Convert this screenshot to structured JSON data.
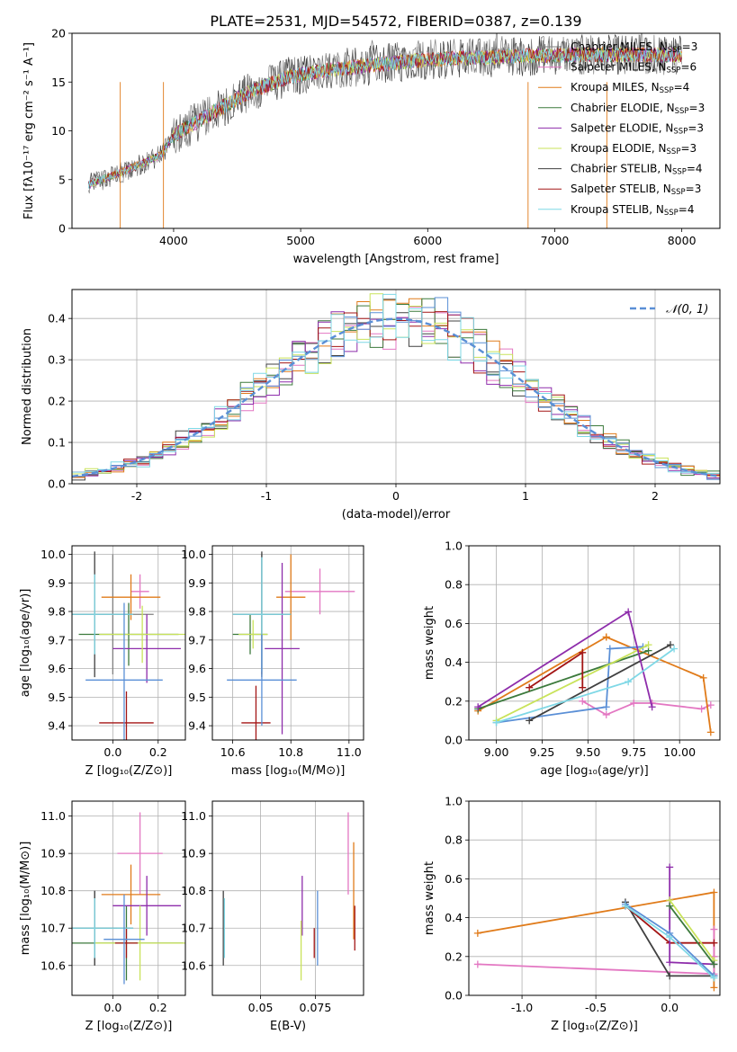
{
  "figure_title": "PLATE=2531, MJD=54572, FIBERID=0387, z=0.139",
  "colors": {
    "cmiles": "#808080",
    "smiles": "#e377c2",
    "kmiles": "#e07b1a",
    "celodie": "#3c7a3c",
    "selodie": "#8e2dab",
    "kelodie": "#c9e35a",
    "cstelib": "#404040",
    "sstelib": "#a31515",
    "kstelib": "#7fd8e6",
    "normal": "#5a8fd6",
    "grid": "#b0b0b0"
  },
  "chart_data": [
    {
      "id": "spectrum",
      "type": "line",
      "title": "PLATE=2531, MJD=54572, FIBERID=0387, z=0.139",
      "xlabel": "wavelength [Angstrom, rest frame]",
      "ylabel": "Flux [fλ10⁻¹⁷ erg cm⁻² s⁻¹ A⁻¹]",
      "xlim": [
        3200,
        8300
      ],
      "ylim": [
        0,
        20
      ],
      "xticks": [
        4000,
        5000,
        6000,
        7000,
        8000
      ],
      "yticks": [
        0,
        5,
        10,
        15,
        20
      ],
      "grid": false,
      "legend_position": "top-right",
      "spectrum_shape": {
        "x": [
          3330,
          3600,
          3900,
          4000,
          4300,
          4600,
          4900,
          5200,
          5600,
          6000,
          6400,
          6800,
          7200,
          7600,
          8000
        ],
        "y": [
          4.5,
          5.8,
          7.5,
          9.5,
          11.8,
          14.0,
          15.5,
          16.2,
          16.8,
          17.3,
          17.5,
          17.7,
          17.8,
          17.8,
          17.8
        ]
      },
      "series": [
        {
          "name": "Chabrier MILES, N",
          "sub": "SSP",
          "suffix": "=3",
          "color_key": "cmiles"
        },
        {
          "name": "Salpeter MILES, N",
          "sub": "SSP",
          "suffix": "=6",
          "color_key": "smiles"
        },
        {
          "name": "Kroupa MILES, N",
          "sub": "SSP",
          "suffix": "=4",
          "color_key": "kmiles"
        },
        {
          "name": "Chabrier ELODIE, N",
          "sub": "SSP",
          "suffix": "=3",
          "color_key": "celodie"
        },
        {
          "name": "Salpeter ELODIE, N",
          "sub": "SSP",
          "suffix": "=3",
          "color_key": "selodie"
        },
        {
          "name": "Kroupa ELODIE, N",
          "sub": "SSP",
          "suffix": "=3",
          "color_key": "kelodie"
        },
        {
          "name": "Chabrier STELIB, N",
          "sub": "SSP",
          "suffix": "=4",
          "color_key": "cstelib"
        },
        {
          "name": "Salpeter STELIB, N",
          "sub": "SSP",
          "suffix": "=3",
          "color_key": "sstelib"
        },
        {
          "name": "Kroupa STELIB, N",
          "sub": "SSP",
          "suffix": "=4",
          "color_key": "kstelib"
        }
      ]
    },
    {
      "id": "residuals",
      "type": "line",
      "xlabel": "(data-model)/error",
      "ylabel": "Normed distribution",
      "xlim": [
        -2.5,
        2.5
      ],
      "ylim": [
        0,
        0.47
      ],
      "xticks": [
        -2,
        -1,
        0,
        1,
        2
      ],
      "yticks": [
        0.0,
        0.1,
        0.2,
        0.3,
        0.4
      ],
      "grid": true,
      "legend": "𝒩(0, 1)",
      "legend_position": "top-right",
      "bin_width": 0.1
    },
    {
      "id": "age_vs_Z",
      "type": "scatter",
      "xlabel": "Z [log₁₀(Z/Z⊙)]",
      "ylabel": "age  [log₁₀(age/yr)]",
      "xlim": [
        -0.18,
        0.32
      ],
      "ylim": [
        9.35,
        10.03
      ],
      "xticks": [
        0.0,
        0.2
      ],
      "yticks": [
        9.4,
        9.5,
        9.6,
        9.7,
        9.8,
        9.9,
        10.0
      ],
      "grid": true,
      "points": [
        {
          "color_key": "cmiles",
          "x": 0.0,
          "xerr": 0.18,
          "y": 9.79,
          "yerr": 0.21
        },
        {
          "color_key": "smiles",
          "x": 0.12,
          "xerr": 0.04,
          "y": 9.87,
          "yerr": 0.06
        },
        {
          "color_key": "kmiles",
          "x": 0.08,
          "xerr": 0.13,
          "y": 9.85,
          "yerr": 0.08
        },
        {
          "color_key": "celodie",
          "x": 0.07,
          "xerr": 0.22,
          "y": 9.72,
          "yerr": 0.11
        },
        {
          "color_key": "selodie",
          "x": 0.15,
          "xerr": 0.15,
          "y": 9.67,
          "yerr": 0.12
        },
        {
          "color_key": "kelodie",
          "x": 0.13,
          "xerr": 0.19,
          "y": 9.72,
          "yerr": 0.1
        },
        {
          "color_key": "cstelib",
          "x": -0.08,
          "xerr": 0.17,
          "y": 9.79,
          "yerr": 0.22
        },
        {
          "color_key": "sstelib",
          "x": 0.06,
          "xerr": 0.12,
          "y": 9.41,
          "yerr": 0.11
        },
        {
          "color_key": "kstelib",
          "x": -0.08,
          "xerr": 0.17,
          "y": 9.79,
          "yerr": 0.14
        },
        {
          "color_key": "normal",
          "x": 0.05,
          "xerr": 0.17,
          "y": 9.56,
          "yerr": 0.27
        }
      ]
    },
    {
      "id": "age_vs_mass",
      "type": "scatter",
      "xlabel": "mass [log₁₀(M/M⊙)]",
      "xlim": [
        10.53,
        11.05
      ],
      "ylim": [
        9.35,
        10.03
      ],
      "xticks": [
        10.6,
        10.8,
        11.0
      ],
      "yticks": [
        9.4,
        9.5,
        9.6,
        9.7,
        9.8,
        9.9,
        10.0
      ],
      "grid": true,
      "points": [
        {
          "color_key": "cmiles",
          "x": 10.7,
          "xerr": 0.1,
          "y": 9.79,
          "yerr": 0.21
        },
        {
          "color_key": "smiles",
          "x": 10.9,
          "xerr": 0.12,
          "y": 9.87,
          "yerr": 0.08
        },
        {
          "color_key": "kmiles",
          "x": 10.8,
          "xerr": 0.05,
          "y": 9.85,
          "yerr": 0.15
        },
        {
          "color_key": "celodie",
          "x": 10.66,
          "xerr": 0.06,
          "y": 9.72,
          "yerr": 0.07
        },
        {
          "color_key": "selodie",
          "x": 10.77,
          "xerr": 0.06,
          "y": 9.67,
          "yerr": 0.3
        },
        {
          "color_key": "kelodie",
          "x": 10.67,
          "xerr": 0.05,
          "y": 9.72,
          "yerr": 0.05
        },
        {
          "color_key": "cstelib",
          "x": 10.7,
          "xerr": 0.1,
          "y": 9.79,
          "yerr": 0.22
        },
        {
          "color_key": "sstelib",
          "x": 10.68,
          "xerr": 0.05,
          "y": 9.41,
          "yerr": 0.13
        },
        {
          "color_key": "kstelib",
          "x": 10.7,
          "xerr": 0.1,
          "y": 9.79,
          "yerr": 0.2
        },
        {
          "color_key": "normal",
          "x": 10.7,
          "xerr": 0.12,
          "y": 9.56,
          "yerr": 0.16
        }
      ]
    },
    {
      "id": "mass_weight_vs_age",
      "type": "line",
      "xlabel": "age  [log₁₀(age/yr)]",
      "ylabel": "mass weight",
      "xlim": [
        8.85,
        10.22
      ],
      "ylim": [
        0,
        1
      ],
      "xticks": [
        9.0,
        9.25,
        9.5,
        9.75,
        10.0
      ],
      "yticks": [
        0.0,
        0.2,
        0.4,
        0.6,
        0.8,
        1.0
      ],
      "grid": true,
      "series": [
        {
          "color_key": "smiles",
          "x": [
            9.47,
            9.6,
            9.75,
            9.85,
            10.12,
            10.17
          ],
          "y": [
            0.2,
            0.13,
            0.19,
            0.19,
            0.16,
            0.18
          ]
        },
        {
          "color_key": "kmiles",
          "x": [
            9.6,
            10.13,
            10.17
          ],
          "y": [
            0.53,
            0.32,
            0.04
          ]
        },
        {
          "color_key": "kmiles",
          "x": [
            8.9,
            9.6
          ],
          "y": [
            0.15,
            0.53
          ]
        },
        {
          "color_key": "normal",
          "x": [
            9.0,
            9.6,
            9.62,
            9.8
          ],
          "y": [
            0.09,
            0.17,
            0.47,
            0.48
          ]
        },
        {
          "color_key": "celodie",
          "x": [
            8.9,
            9.83
          ],
          "y": [
            0.16,
            0.46
          ]
        },
        {
          "color_key": "kelodie",
          "x": [
            9.0,
            9.83
          ],
          "y": [
            0.1,
            0.49
          ]
        },
        {
          "color_key": "cstelib",
          "x": [
            9.18,
            9.95
          ],
          "y": [
            0.1,
            0.49
          ]
        },
        {
          "color_key": "sstelib",
          "x": [
            9.18,
            9.47,
            9.47
          ],
          "y": [
            0.27,
            0.45,
            0.27
          ]
        },
        {
          "color_key": "selodie",
          "x": [
            8.9,
            9.72,
            9.85
          ],
          "y": [
            0.17,
            0.66,
            0.17
          ]
        },
        {
          "color_key": "kstelib",
          "x": [
            9.0,
            9.72,
            9.97
          ],
          "y": [
            0.09,
            0.3,
            0.47
          ]
        }
      ]
    },
    {
      "id": "mass_vs_Z",
      "type": "scatter",
      "xlabel": "Z [log₁₀(Z/Z⊙)]",
      "ylabel": "mass [log₁₀(M/M⊙)]",
      "xlim": [
        -0.18,
        0.32
      ],
      "ylim": [
        10.52,
        11.04
      ],
      "xticks": [
        0.0,
        0.2
      ],
      "yticks": [
        10.6,
        10.7,
        10.8,
        10.9,
        11.0
      ],
      "grid": true,
      "points": [
        {
          "color_key": "cmiles",
          "x": -0.08,
          "xerr": 0.1,
          "y": 10.7,
          "yerr": 0.1
        },
        {
          "color_key": "smiles",
          "x": 0.12,
          "xerr": 0.1,
          "y": 10.9,
          "yerr": 0.11
        },
        {
          "color_key": "kmiles",
          "x": 0.08,
          "xerr": 0.13,
          "y": 10.79,
          "yerr": 0.08
        },
        {
          "color_key": "celodie",
          "x": 0.06,
          "xerr": 0.25,
          "y": 10.66,
          "yerr": 0.1
        },
        {
          "color_key": "selodie",
          "x": 0.15,
          "xerr": 0.15,
          "y": 10.76,
          "yerr": 0.08
        },
        {
          "color_key": "kelodie",
          "x": 0.12,
          "xerr": 0.2,
          "y": 10.66,
          "yerr": 0.1
        },
        {
          "color_key": "cstelib",
          "x": -0.08,
          "xerr": 0.17,
          "y": 10.7,
          "yerr": 0.1
        },
        {
          "color_key": "sstelib",
          "x": 0.06,
          "xerr": 0.05,
          "y": 10.66,
          "yerr": 0.04
        },
        {
          "color_key": "kstelib",
          "x": -0.08,
          "xerr": 0.17,
          "y": 10.7,
          "yerr": 0.08
        },
        {
          "color_key": "normal",
          "x": 0.05,
          "xerr": 0.09,
          "y": 10.67,
          "yerr": 0.12
        }
      ]
    },
    {
      "id": "mass_vs_ebv",
      "type": "scatter",
      "xlabel": "E(B-V)",
      "xlim": [
        0.028,
        0.097
      ],
      "ylim": [
        10.52,
        11.04
      ],
      "xticks": [
        0.05,
        0.075
      ],
      "yticks": [
        10.6,
        10.7,
        10.8,
        10.9,
        11.0
      ],
      "grid": true,
      "points": [
        {
          "color_key": "cstelib",
          "x": 0.033,
          "y": 10.7,
          "yerr": 0.1
        },
        {
          "color_key": "kstelib",
          "x": 0.0335,
          "y": 10.7,
          "yerr": 0.08
        },
        {
          "color_key": "selodie",
          "x": 0.069,
          "y": 10.76,
          "yerr": 0.08
        },
        {
          "color_key": "kelodie",
          "x": 0.0685,
          "y": 10.64,
          "yerr": 0.08
        },
        {
          "color_key": "normal",
          "x": 0.076,
          "y": 10.7,
          "yerr": 0.1
        },
        {
          "color_key": "sstelib",
          "x": 0.0745,
          "y": 10.66,
          "yerr": 0.04
        },
        {
          "color_key": "smiles",
          "x": 0.09,
          "y": 10.9,
          "yerr": 0.11
        },
        {
          "color_key": "kmiles",
          "x": 0.0925,
          "y": 10.8,
          "yerr": 0.13
        },
        {
          "color_key": "sstelib",
          "x": 0.093,
          "y": 10.7,
          "yerr": 0.06
        }
      ]
    },
    {
      "id": "mass_weight_vs_Z",
      "type": "line",
      "xlabel": "Z [log₁₀(Z/Z⊙)]",
      "ylabel": "mass weight",
      "xlim": [
        -1.36,
        0.34
      ],
      "ylim": [
        0,
        1
      ],
      "xticks": [
        -1.0,
        -0.5,
        0.0
      ],
      "yticks": [
        0.0,
        0.2,
        0.4,
        0.6,
        0.8,
        1.0
      ],
      "grid": true,
      "series": [
        {
          "color_key": "kmiles",
          "x": [
            -1.3,
            0.3,
            0.3
          ],
          "y": [
            0.32,
            0.53,
            0.04
          ]
        },
        {
          "color_key": "smiles",
          "x": [
            -1.3,
            0.3,
            0.3,
            0.3
          ],
          "y": [
            0.16,
            0.11,
            0.2,
            0.34
          ]
        },
        {
          "color_key": "cstelib",
          "x": [
            -0.3,
            0.0,
            0.3
          ],
          "y": [
            0.48,
            0.1,
            0.1
          ]
        },
        {
          "color_key": "sstelib",
          "x": [
            -0.3,
            0.0,
            0.3
          ],
          "y": [
            0.46,
            0.27,
            0.27
          ]
        },
        {
          "color_key": "selodie",
          "x": [
            0.0,
            0.0,
            0.3
          ],
          "y": [
            0.66,
            0.17,
            0.16
          ]
        },
        {
          "color_key": "kelodie",
          "x": [
            0.0,
            0.3
          ],
          "y": [
            0.49,
            0.18
          ]
        },
        {
          "color_key": "celodie",
          "x": [
            0.0,
            0.3
          ],
          "y": [
            0.46,
            0.16
          ]
        },
        {
          "color_key": "normal",
          "x": [
            -0.3,
            0.0,
            0.3
          ],
          "y": [
            0.47,
            0.32,
            0.1
          ]
        },
        {
          "color_key": "kstelib",
          "x": [
            -0.3,
            0.0,
            0.3
          ],
          "y": [
            0.46,
            0.3,
            0.09
          ]
        }
      ]
    }
  ]
}
